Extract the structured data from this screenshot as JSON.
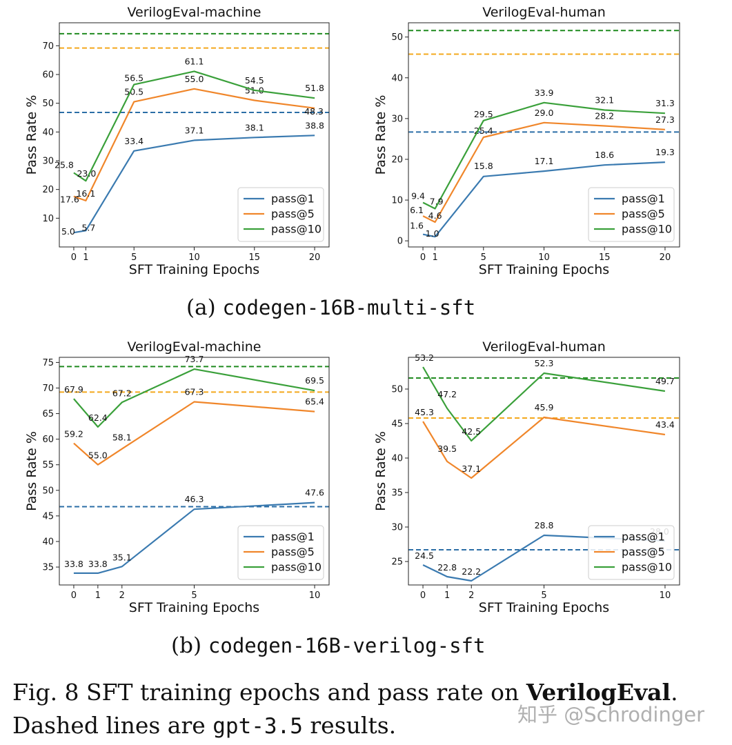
{
  "chart_data": [
    {
      "type": "line",
      "title": "VerilogEval-machine",
      "xlabel": "SFT Training Epochs",
      "ylabel": "Pass Rate %",
      "x": [
        0,
        1,
        5,
        10,
        15,
        20
      ],
      "xlim": [
        -1.2,
        21.2
      ],
      "ylim": [
        0,
        78
      ],
      "xticks": [
        "0",
        "1",
        "5",
        "10",
        "15",
        "20"
      ],
      "yticks": [
        10,
        20,
        30,
        40,
        50,
        60,
        70
      ],
      "series": [
        {
          "name": "pass@1",
          "color": "#3a7ab0",
          "values": [
            5.0,
            5.7,
            33.4,
            37.1,
            38.1,
            38.8
          ],
          "labels": [
            "5.0",
            "5.7",
            "33.4",
            "37.1",
            "38.1",
            "38.8"
          ]
        },
        {
          "name": "pass@5",
          "color": "#f0862a",
          "values": [
            17.6,
            16.1,
            50.5,
            55.0,
            51.0,
            48.3
          ],
          "labels": [
            "17.6",
            "16.1",
            "50.5",
            "55.0",
            "51.0",
            "48.3"
          ]
        },
        {
          "name": "pass@10",
          "color": "#3aa03a",
          "values": [
            25.8,
            23.0,
            56.5,
            61.1,
            54.5,
            51.8
          ],
          "labels": [
            "25.8",
            "23.0",
            "56.5",
            "61.1",
            "54.5",
            "51.8"
          ]
        }
      ],
      "baselines": [
        {
          "name": "gpt-3.5 pass@1",
          "value": 46.8,
          "color": "#2b6ea6"
        },
        {
          "name": "gpt-3.5 pass@5",
          "value": 69.2,
          "color": "#f3a81c"
        },
        {
          "name": "gpt-3.5 pass@10",
          "value": 74.2,
          "color": "#1f8a1f"
        }
      ],
      "legend": "bottom-right"
    },
    {
      "type": "line",
      "title": "VerilogEval-human",
      "xlabel": "SFT Training Epochs",
      "ylabel": "Pass Rate %",
      "x": [
        0,
        1,
        5,
        10,
        15,
        20
      ],
      "xlim": [
        -1.2,
        21.2
      ],
      "ylim": [
        -1.5,
        53.5
      ],
      "xticks": [
        "0",
        "1",
        "5",
        "10",
        "15",
        "20"
      ],
      "yticks": [
        0,
        10,
        20,
        30,
        40,
        50
      ],
      "series": [
        {
          "name": "pass@1",
          "color": "#3a7ab0",
          "values": [
            1.6,
            1.0,
            15.8,
            17.1,
            18.6,
            19.3
          ],
          "labels": [
            "1.6",
            "1.0",
            "15.8",
            "17.1",
            "18.6",
            "19.3"
          ]
        },
        {
          "name": "pass@5",
          "color": "#f0862a",
          "values": [
            6.1,
            4.6,
            25.4,
            29.0,
            28.2,
            27.3
          ],
          "labels": [
            "6.1",
            "4.6",
            "25.4",
            "29.0",
            "28.2",
            "27.3"
          ]
        },
        {
          "name": "pass@10",
          "color": "#3aa03a",
          "values": [
            9.4,
            7.9,
            29.5,
            33.9,
            32.1,
            31.3
          ],
          "labels": [
            "9.4",
            "7.9",
            "29.5",
            "33.9",
            "32.1",
            "31.3"
          ]
        }
      ],
      "baselines": [
        {
          "name": "gpt-3.5 pass@1",
          "value": 26.7,
          "color": "#2b6ea6"
        },
        {
          "name": "gpt-3.5 pass@5",
          "value": 45.8,
          "color": "#f3a81c"
        },
        {
          "name": "gpt-3.5 pass@10",
          "value": 51.6,
          "color": "#1f8a1f"
        }
      ],
      "legend": "bottom-right"
    },
    {
      "type": "line",
      "title": "VerilogEval-machine",
      "xlabel": "SFT Training Epochs",
      "ylabel": "Pass Rate %",
      "x": [
        0,
        1,
        2,
        5,
        10
      ],
      "xlim": [
        -0.6,
        10.6
      ],
      "ylim": [
        31.5,
        76
      ],
      "xticks": [
        "0",
        "1",
        "2",
        "5",
        "10"
      ],
      "yticks": [
        35,
        40,
        45,
        50,
        55,
        60,
        65,
        70,
        75
      ],
      "series": [
        {
          "name": "pass@1",
          "color": "#3a7ab0",
          "values": [
            33.8,
            33.8,
            35.1,
            46.3,
            47.6
          ],
          "labels": [
            "33.8",
            "33.8",
            "35.1",
            "46.3",
            "47.6"
          ]
        },
        {
          "name": "pass@5",
          "color": "#f0862a",
          "values": [
            59.2,
            55.0,
            58.1,
            67.3,
            65.4
          ],
          "labels": [
            "59.2",
            "55.0",
            "58.1",
            "67.3",
            "65.4"
          ]
        },
        {
          "name": "pass@10",
          "color": "#3aa03a",
          "values": [
            67.9,
            62.4,
            67.2,
            73.7,
            69.5
          ],
          "labels": [
            "67.9",
            "62.4",
            "67.2",
            "73.7",
            "69.5"
          ]
        }
      ],
      "baselines": [
        {
          "name": "gpt-3.5 pass@1",
          "value": 46.8,
          "color": "#2b6ea6"
        },
        {
          "name": "gpt-3.5 pass@5",
          "value": 69.2,
          "color": "#f3a81c"
        },
        {
          "name": "gpt-3.5 pass@10",
          "value": 74.2,
          "color": "#1f8a1f"
        }
      ],
      "legend": "bottom-right"
    },
    {
      "type": "line",
      "title": "VerilogEval-human",
      "xlabel": "SFT Training Epochs",
      "ylabel": "Pass Rate %",
      "x": [
        0,
        1,
        2,
        5,
        10
      ],
      "xlim": [
        -0.6,
        10.6
      ],
      "ylim": [
        21.6,
        54.6
      ],
      "xticks": [
        "0",
        "1",
        "2",
        "5",
        "10"
      ],
      "yticks": [
        25,
        30,
        35,
        40,
        45,
        50
      ],
      "series": [
        {
          "name": "pass@1",
          "color": "#3a7ab0",
          "values": [
            24.5,
            22.8,
            22.2,
            28.8,
            28.0
          ],
          "labels": [
            "24.5",
            "22.8",
            "22.2",
            "28.8",
            "28.0"
          ]
        },
        {
          "name": "pass@5",
          "color": "#f0862a",
          "values": [
            45.3,
            39.5,
            37.1,
            45.9,
            43.4
          ],
          "labels": [
            "45.3",
            "39.5",
            "37.1",
            "45.9",
            "43.4"
          ]
        },
        {
          "name": "pass@10",
          "color": "#3aa03a",
          "values": [
            53.2,
            47.2,
            42.5,
            52.3,
            49.7
          ],
          "labels": [
            "53.2",
            "47.2",
            "42.5",
            "52.3",
            "49.7"
          ]
        }
      ],
      "baselines": [
        {
          "name": "gpt-3.5 pass@1",
          "value": 26.7,
          "color": "#2b6ea6"
        },
        {
          "name": "gpt-3.5 pass@5",
          "value": 45.8,
          "color": "#f3a81c"
        },
        {
          "name": "gpt-3.5 pass@10",
          "value": 51.6,
          "color": "#1f8a1f"
        }
      ],
      "legend": "bottom-right"
    }
  ],
  "subcaptions": {
    "a": {
      "label": "(a)",
      "model": "codegen-16B-multi-sft"
    },
    "b": {
      "label": "(b)",
      "model": "codegen-16B-verilog-sft"
    }
  },
  "caption": {
    "prefix": "Fig. 8 SFT training epochs and pass rate on ",
    "bold": "VerilogEval",
    "period": ".",
    "line2_prefix": "Dashed lines are ",
    "code": "gpt-3.5",
    "line2_suffix": " results."
  },
  "watermark": "知乎 @Schrodinger"
}
